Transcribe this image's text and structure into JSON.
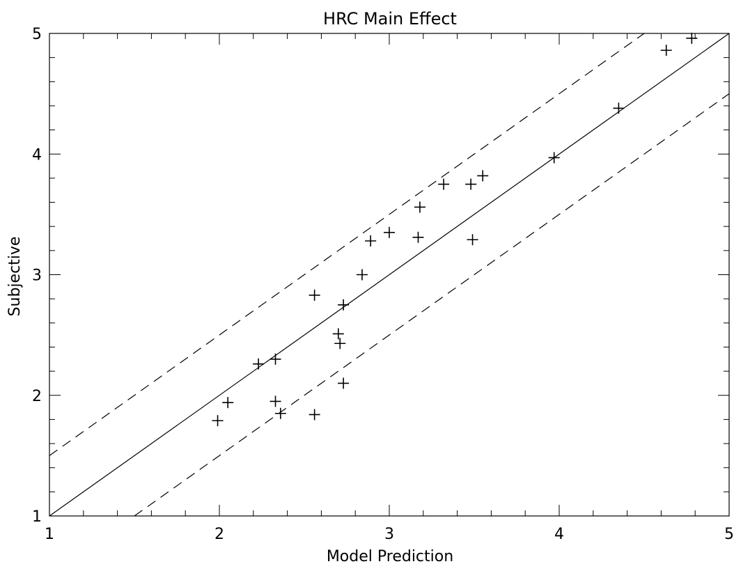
{
  "chart_data": {
    "type": "scatter",
    "title": "HRC Main Effect",
    "xlabel": "Model Prediction",
    "ylabel": "Subjective",
    "xlim": [
      1,
      5
    ],
    "ylim": [
      1,
      5
    ],
    "x_ticks": [
      "1",
      "2",
      "3",
      "4",
      "5"
    ],
    "y_ticks": [
      "1",
      "2",
      "3",
      "4",
      "5"
    ],
    "grid": false,
    "marker": "plus",
    "points": [
      {
        "x": 1.99,
        "y": 1.79
      },
      {
        "x": 2.05,
        "y": 1.94
      },
      {
        "x": 2.23,
        "y": 2.26
      },
      {
        "x": 2.33,
        "y": 2.3
      },
      {
        "x": 2.33,
        "y": 1.95
      },
      {
        "x": 2.36,
        "y": 1.85
      },
      {
        "x": 2.56,
        "y": 2.83
      },
      {
        "x": 2.56,
        "y": 1.84
      },
      {
        "x": 2.7,
        "y": 2.51
      },
      {
        "x": 2.71,
        "y": 2.43
      },
      {
        "x": 2.73,
        "y": 2.75
      },
      {
        "x": 2.73,
        "y": 2.1
      },
      {
        "x": 2.84,
        "y": 3.0
      },
      {
        "x": 2.89,
        "y": 3.28
      },
      {
        "x": 3.0,
        "y": 3.35
      },
      {
        "x": 3.17,
        "y": 3.31
      },
      {
        "x": 3.18,
        "y": 3.56
      },
      {
        "x": 3.32,
        "y": 3.75
      },
      {
        "x": 3.48,
        "y": 3.75
      },
      {
        "x": 3.49,
        "y": 3.29
      },
      {
        "x": 3.55,
        "y": 3.82
      },
      {
        "x": 3.97,
        "y": 3.97
      },
      {
        "x": 4.35,
        "y": 4.38
      },
      {
        "x": 4.63,
        "y": 4.86
      },
      {
        "x": 4.78,
        "y": 4.96
      }
    ],
    "lines": [
      {
        "style": "solid",
        "x": [
          1,
          5
        ],
        "y": [
          1,
          5
        ]
      },
      {
        "style": "dashed",
        "x": [
          1,
          4.5
        ],
        "y": [
          1.5,
          5
        ]
      },
      {
        "style": "dashed",
        "x": [
          1.5,
          5
        ],
        "y": [
          1,
          4.5
        ]
      }
    ]
  }
}
